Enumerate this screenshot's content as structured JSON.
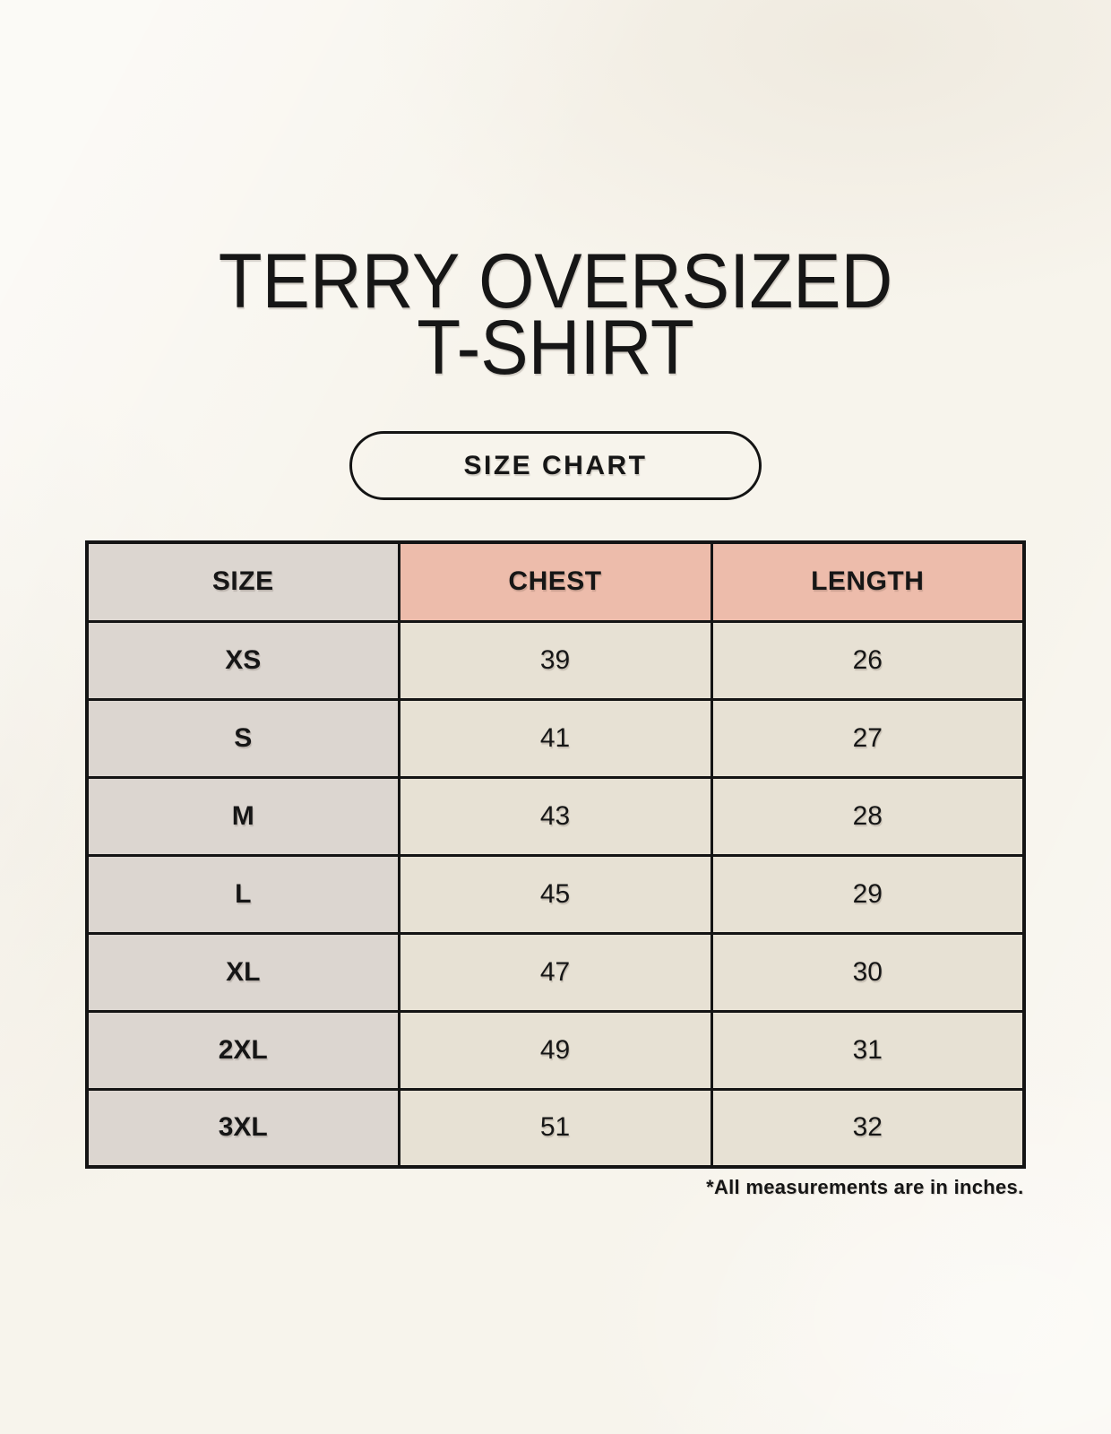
{
  "header": {
    "title_line1": "TERRY OVERSIZED",
    "title_line2": "T-SHIRT",
    "size_chart_label": "SIZE CHART"
  },
  "chart_data": {
    "type": "table",
    "title": "TERRY OVERSIZED T-SHIRT",
    "columns": [
      "SIZE",
      "CHEST",
      "LENGTH"
    ],
    "rows": [
      [
        "XS",
        39,
        26
      ],
      [
        "S",
        41,
        27
      ],
      [
        "M",
        43,
        28
      ],
      [
        "L",
        45,
        29
      ],
      [
        "XL",
        47,
        30
      ],
      [
        "2XL",
        49,
        31
      ],
      [
        "3XL",
        51,
        32
      ]
    ],
    "note": "*All measurements are in inches."
  },
  "colors": {
    "background": "#f7f4ec",
    "header_accent": "#edbcab",
    "size_column": "#dcd6d0",
    "cell": "#e7e1d4",
    "border": "#141414",
    "text": "#161616"
  }
}
